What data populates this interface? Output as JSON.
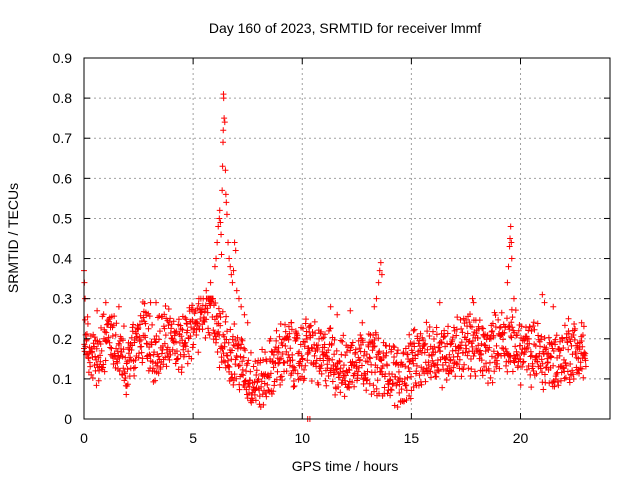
{
  "chart_data": {
    "type": "scatter",
    "title": "Day 160 of 2023, SRMTID for receiver lmmf",
    "xlabel": "GPS time / hours",
    "ylabel": "SRMTID / TECUs",
    "xlim": [
      0,
      24.1
    ],
    "ylim": [
      0,
      0.9
    ],
    "x_ticks": [
      0,
      5,
      10,
      15,
      20
    ],
    "x_tick_labels": [
      "0",
      "5",
      "10",
      "15",
      "20"
    ],
    "y_ticks": [
      0,
      0.1,
      0.2,
      0.3,
      0.4,
      0.5,
      0.6,
      0.7,
      0.8,
      0.9
    ],
    "y_tick_labels": [
      "0",
      "0.1",
      "0.2",
      "0.3",
      "0.4",
      "0.5",
      "0.6",
      "0.7",
      "0.8",
      "0.9"
    ],
    "grid": true,
    "marker": "+",
    "series": [
      {
        "name": "SRMTID",
        "color": "#ff0000",
        "x_start": 0,
        "x_step": 0.25,
        "baseline": [
          0.19,
          0.17,
          0.15,
          0.16,
          0.19,
          0.2,
          0.18,
          0.16,
          0.14,
          0.17,
          0.19,
          0.21,
          0.18,
          0.17,
          0.19,
          0.21,
          0.2,
          0.18,
          0.19,
          0.2,
          0.22,
          0.25,
          0.27,
          0.28,
          0.26,
          0.2,
          0.18,
          0.17,
          0.16,
          0.13,
          0.11,
          0.1,
          0.09,
          0.1,
          0.12,
          0.14,
          0.16,
          0.17,
          0.16,
          0.15,
          0.16,
          0.19,
          0.17,
          0.15,
          0.15,
          0.16,
          0.14,
          0.13,
          0.12,
          0.14,
          0.16,
          0.17,
          0.14,
          0.15,
          0.13,
          0.12,
          0.13,
          0.11,
          0.1,
          0.12,
          0.13,
          0.14,
          0.15,
          0.16,
          0.17,
          0.17,
          0.16,
          0.17,
          0.18,
          0.18,
          0.19,
          0.19,
          0.18,
          0.17,
          0.16,
          0.18,
          0.2,
          0.2,
          0.19,
          0.19,
          0.17,
          0.17,
          0.16,
          0.17,
          0.15,
          0.15,
          0.14,
          0.15,
          0.16,
          0.17,
          0.17,
          0.16,
          0.16
        ],
        "spikes": [
          {
            "x": 0.0,
            "y": 0.37
          },
          {
            "x": 0.02,
            "y": 0.34
          },
          {
            "x": 0.05,
            "y": 0.3
          },
          {
            "x": 0.6,
            "y": 0.27
          },
          {
            "x": 1.0,
            "y": 0.29
          },
          {
            "x": 1.6,
            "y": 0.28
          },
          {
            "x": 3.05,
            "y": 0.29
          },
          {
            "x": 3.3,
            "y": 0.29
          },
          {
            "x": 5.6,
            "y": 0.32
          },
          {
            "x": 5.8,
            "y": 0.34
          },
          {
            "x": 6.0,
            "y": 0.38
          },
          {
            "x": 6.05,
            "y": 0.4
          },
          {
            "x": 6.1,
            "y": 0.44
          },
          {
            "x": 6.15,
            "y": 0.48
          },
          {
            "x": 6.2,
            "y": 0.5
          },
          {
            "x": 6.22,
            "y": 0.52
          },
          {
            "x": 6.25,
            "y": 0.49
          },
          {
            "x": 6.28,
            "y": 0.46
          },
          {
            "x": 6.3,
            "y": 0.41
          },
          {
            "x": 6.33,
            "y": 0.57
          },
          {
            "x": 6.35,
            "y": 0.63
          },
          {
            "x": 6.37,
            "y": 0.69
          },
          {
            "x": 6.38,
            "y": 0.72
          },
          {
            "x": 6.39,
            "y": 0.81
          },
          {
            "x": 6.4,
            "y": 0.8
          },
          {
            "x": 6.42,
            "y": 0.75
          },
          {
            "x": 6.45,
            "y": 0.74
          },
          {
            "x": 6.48,
            "y": 0.62
          },
          {
            "x": 6.5,
            "y": 0.56
          },
          {
            "x": 6.52,
            "y": 0.54
          },
          {
            "x": 6.55,
            "y": 0.51
          },
          {
            "x": 6.6,
            "y": 0.44
          },
          {
            "x": 6.65,
            "y": 0.4
          },
          {
            "x": 6.7,
            "y": 0.38
          },
          {
            "x": 6.75,
            "y": 0.36
          },
          {
            "x": 6.8,
            "y": 0.34
          },
          {
            "x": 6.85,
            "y": 0.37
          },
          {
            "x": 6.9,
            "y": 0.44
          },
          {
            "x": 6.95,
            "y": 0.42
          },
          {
            "x": 7.0,
            "y": 0.32
          },
          {
            "x": 7.1,
            "y": 0.3
          },
          {
            "x": 7.2,
            "y": 0.28
          },
          {
            "x": 7.35,
            "y": 0.26
          },
          {
            "x": 7.5,
            "y": 0.24
          },
          {
            "x": 9.5,
            "y": 0.24
          },
          {
            "x": 10.25,
            "y": 0.0
          },
          {
            "x": 10.35,
            "y": 0.0
          },
          {
            "x": 11.3,
            "y": 0.28
          },
          {
            "x": 11.6,
            "y": 0.26
          },
          {
            "x": 12.2,
            "y": 0.27
          },
          {
            "x": 13.3,
            "y": 0.28
          },
          {
            "x": 13.4,
            "y": 0.3
          },
          {
            "x": 13.5,
            "y": 0.34
          },
          {
            "x": 13.55,
            "y": 0.37
          },
          {
            "x": 13.6,
            "y": 0.39
          },
          {
            "x": 13.65,
            "y": 0.36
          },
          {
            "x": 14.9,
            "y": 0.21
          },
          {
            "x": 15.1,
            "y": 0.22
          },
          {
            "x": 16.3,
            "y": 0.29
          },
          {
            "x": 17.8,
            "y": 0.3
          },
          {
            "x": 17.85,
            "y": 0.29
          },
          {
            "x": 19.4,
            "y": 0.34
          },
          {
            "x": 19.45,
            "y": 0.38
          },
          {
            "x": 19.5,
            "y": 0.43
          },
          {
            "x": 19.52,
            "y": 0.45
          },
          {
            "x": 19.55,
            "y": 0.48
          },
          {
            "x": 19.58,
            "y": 0.44
          },
          {
            "x": 19.6,
            "y": 0.4
          },
          {
            "x": 19.7,
            "y": 0.3
          },
          {
            "x": 21.0,
            "y": 0.31
          },
          {
            "x": 21.1,
            "y": 0.29
          },
          {
            "x": 21.5,
            "y": 0.28
          },
          {
            "x": 22.2,
            "y": 0.25
          },
          {
            "x": 22.8,
            "y": 0.24
          }
        ]
      }
    ]
  }
}
